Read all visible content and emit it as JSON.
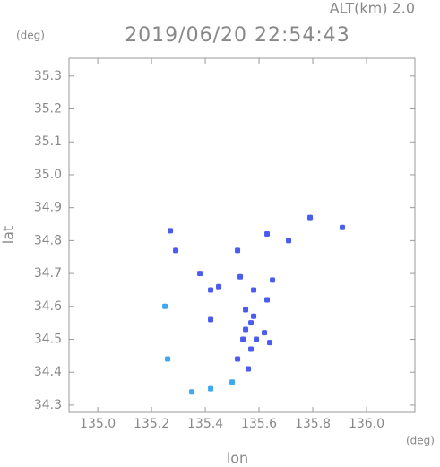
{
  "chart_data": {
    "type": "scatter",
    "title": "2019/06/20 22:54:43",
    "subtitle": "ALT(km) 2.0",
    "y_unit": "(deg)",
    "x_unit": "(deg)",
    "xlabel": "lon",
    "ylabel": "lat",
    "xlim": [
      134.893,
      136.18
    ],
    "ylim": [
      34.278,
      35.354
    ],
    "xticks": [
      {
        "value": 135.0,
        "label": "135.0"
      },
      135.2,
      135.4,
      135.6,
      135.8,
      {
        "value": 136.0,
        "label": "136.0"
      }
    ],
    "yticks": [
      34.3,
      34.4,
      34.5,
      34.6,
      34.7,
      34.8,
      34.9,
      {
        "value": 35.0,
        "label": "35.0"
      },
      35.1,
      35.2,
      35.3
    ],
    "series": [
      {
        "color": "#4a5cf0",
        "x": [
          135.27,
          135.29,
          135.52,
          135.63,
          135.71,
          135.79,
          135.91,
          135.38,
          135.42,
          135.45,
          135.53,
          135.58,
          135.65,
          135.63,
          135.55,
          135.42,
          135.57,
          135.59,
          135.54,
          135.62,
          135.64,
          135.52,
          135.56,
          135.55,
          135.57,
          135.58
        ],
        "values": [
          34.83,
          34.77,
          34.77,
          34.82,
          34.8,
          34.87,
          34.84,
          34.7,
          34.65,
          34.66,
          34.69,
          34.65,
          34.68,
          34.62,
          34.59,
          34.56,
          34.55,
          34.5,
          34.5,
          34.52,
          34.49,
          34.44,
          34.41,
          34.53,
          34.47,
          34.57
        ]
      },
      {
        "color": "#3fa8f0",
        "x": [
          135.25,
          135.26,
          135.35,
          135.42,
          135.5
        ],
        "values": [
          34.6,
          34.44,
          34.34,
          34.35,
          34.37
        ]
      }
    ]
  }
}
